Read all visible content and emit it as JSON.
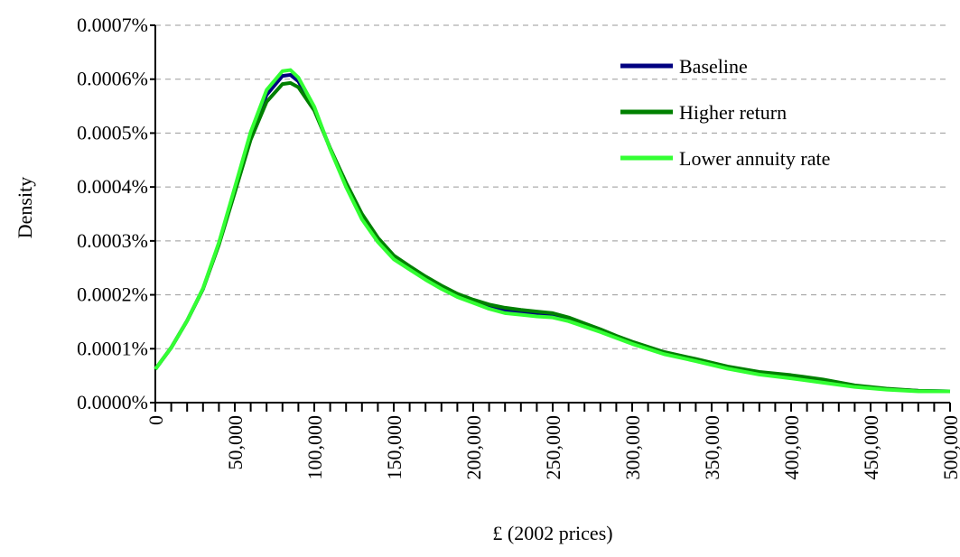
{
  "chart_data": {
    "type": "line",
    "x_label": "£ (2002 prices)",
    "y_label": "Density",
    "x": [
      0,
      10000,
      20000,
      30000,
      40000,
      50000,
      60000,
      70000,
      80000,
      85000,
      90000,
      100000,
      110000,
      120000,
      130000,
      140000,
      150000,
      160000,
      170000,
      180000,
      190000,
      200000,
      210000,
      220000,
      230000,
      240000,
      250000,
      260000,
      270000,
      280000,
      290000,
      300000,
      320000,
      340000,
      360000,
      380000,
      400000,
      420000,
      440000,
      460000,
      480000,
      500000
    ],
    "series": [
      {
        "name": "Baseline",
        "color": "#000080",
        "values": [
          6.2e-05,
          0.000102,
          0.000152,
          0.000211,
          0.000295,
          0.000395,
          0.000496,
          0.000571,
          0.000606,
          0.000608,
          0.000596,
          0.000546,
          0.000471,
          0.000404,
          0.000345,
          0.000303,
          0.00027,
          0.00025,
          0.000231,
          0.000214,
          0.000199,
          0.000188,
          0.000178,
          0.000171,
          0.000168,
          0.000164,
          0.000161,
          0.000154,
          0.000144,
          0.000134,
          0.000122,
          0.000111,
          9.2e-05,
          7.9e-05,
          6.5e-05,
          5.4e-05,
          4.7e-05,
          3.9e-05,
          3e-05,
          2.5e-05,
          2.2e-05,
          2.1e-05
        ]
      },
      {
        "name": "Higher return",
        "color": "#008000",
        "values": [
          6.2e-05,
          0.000102,
          0.000152,
          0.000211,
          0.000293,
          0.00039,
          0.000488,
          0.000558,
          0.000591,
          0.000593,
          0.000585,
          0.000542,
          0.000472,
          0.000408,
          0.00035,
          0.000306,
          0.000273,
          0.000253,
          0.000234,
          0.000217,
          0.000202,
          0.000191,
          0.000182,
          0.000176,
          0.000172,
          0.000169,
          0.000166,
          0.000158,
          0.000147,
          0.000136,
          0.000124,
          0.000113,
          9.4e-05,
          8.1e-05,
          6.7e-05,
          5.7e-05,
          5.1e-05,
          4.3e-05,
          3.2e-05,
          2.6e-05,
          2.2e-05,
          2.1e-05
        ]
      },
      {
        "name": "Lower annuity rate",
        "color": "#33ff33",
        "values": [
          6.2e-05,
          0.000102,
          0.000152,
          0.000212,
          0.000297,
          0.000399,
          0.000502,
          0.00058,
          0.000615,
          0.000617,
          0.000603,
          0.000549,
          0.00047,
          0.0004,
          0.00034,
          0.000298,
          0.000266,
          0.000247,
          0.000228,
          0.000211,
          0.000196,
          0.000185,
          0.000174,
          0.000166,
          0.000163,
          0.00016,
          0.000158,
          0.000151,
          0.000141,
          0.000131,
          0.00012,
          0.000109,
          9e-05,
          7.7e-05,
          6.3e-05,
          5.2e-05,
          4.5e-05,
          3.7e-05,
          2.9e-05,
          2.4e-05,
          2.1e-05,
          2.1e-05
        ]
      }
    ],
    "xlim": [
      0,
      500000
    ],
    "xticks": [
      {
        "value": 0,
        "label": "0"
      },
      {
        "value": 50000,
        "label": "50,000"
      },
      {
        "value": 100000,
        "label": "100,000"
      },
      {
        "value": 150000,
        "label": "150,000"
      },
      {
        "value": 200000,
        "label": "200,000"
      },
      {
        "value": 250000,
        "label": "250,000"
      },
      {
        "value": 300000,
        "label": "300,000"
      },
      {
        "value": 350000,
        "label": "350,000"
      },
      {
        "value": 400000,
        "label": "400,000"
      },
      {
        "value": 450000,
        "label": "450,000"
      },
      {
        "value": 500000,
        "label": "500,000"
      }
    ],
    "xminorticks": [
      10000,
      20000,
      30000,
      40000,
      60000,
      70000,
      80000,
      90000,
      110000,
      120000,
      130000,
      140000,
      160000,
      170000,
      180000,
      190000,
      210000,
      220000,
      230000,
      240000,
      260000,
      270000,
      280000,
      290000,
      310000,
      320000,
      330000,
      340000,
      360000,
      370000,
      380000,
      390000,
      410000,
      420000,
      430000,
      440000,
      460000,
      470000,
      480000,
      490000
    ],
    "ylim": [
      0,
      0.0007
    ],
    "yticks": [
      {
        "value": 0,
        "label": "0.0000%"
      },
      {
        "value": 0.0001,
        "label": "0.0001%"
      },
      {
        "value": 0.0002,
        "label": "0.0002%"
      },
      {
        "value": 0.0003,
        "label": "0.0003%"
      },
      {
        "value": 0.0004,
        "label": "0.0004%"
      },
      {
        "value": 0.0005,
        "label": "0.0005%"
      },
      {
        "value": 0.0006,
        "label": "0.0006%"
      },
      {
        "value": 0.0007,
        "label": "0.0007%"
      }
    ],
    "grid": true,
    "legend": "top-right"
  }
}
